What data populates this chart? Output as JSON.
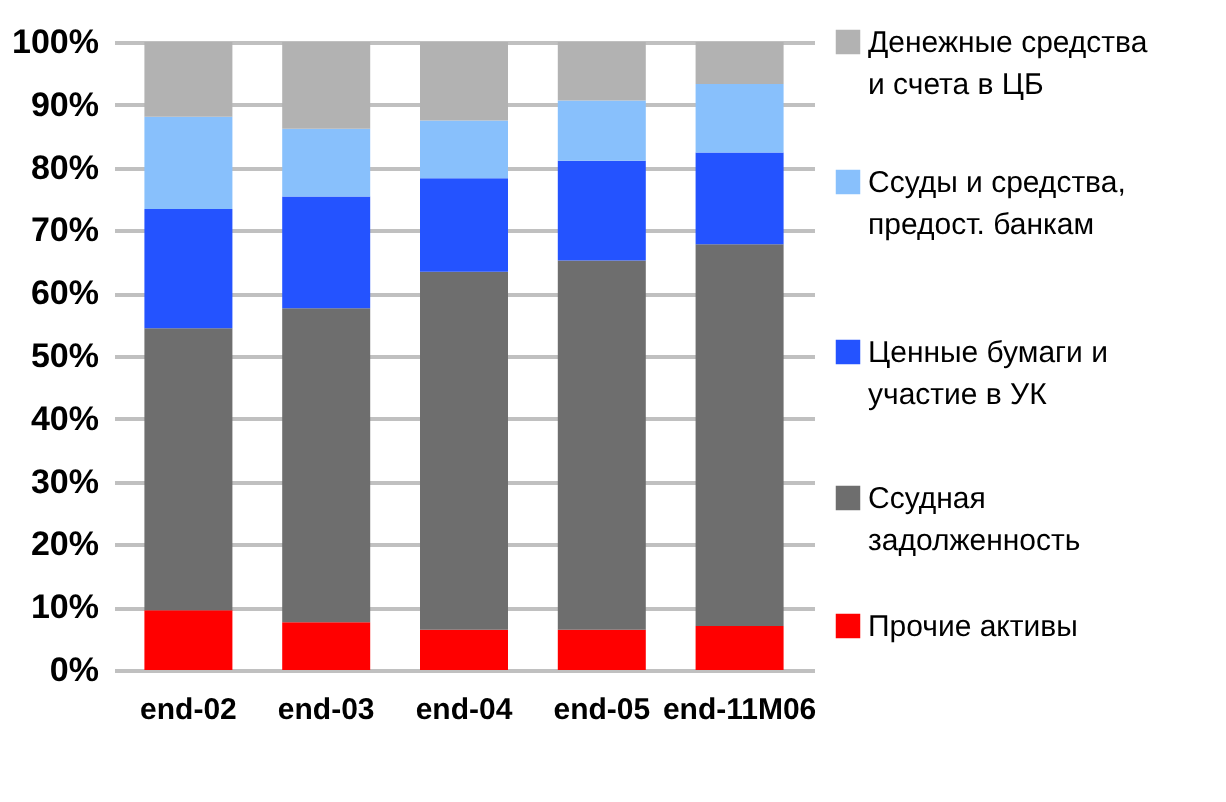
{
  "chart_data": {
    "type": "bar",
    "stacked": true,
    "categories": [
      "end-02",
      "end-03",
      "end-04",
      "end-05",
      "end-11M06"
    ],
    "series": [
      {
        "name": "Прочие активы",
        "color": "#ff0000",
        "values": [
          9.5,
          7.6,
          6.4,
          6.4,
          7.0
        ]
      },
      {
        "name": "Ссудная задолженность",
        "color": "#6e6e6e",
        "values": [
          44.9,
          50.0,
          57.0,
          58.8,
          60.8
        ]
      },
      {
        "name": "Ценные бумаги и участие в УК",
        "color": "#2453ff",
        "values": [
          19.0,
          17.8,
          14.9,
          15.9,
          14.6
        ]
      },
      {
        "name": "Ссуды и средства, предост. банкам",
        "color": "#88c0fc",
        "values": [
          14.7,
          10.8,
          9.2,
          9.6,
          10.9
        ]
      },
      {
        "name": "Денежные средства и счета в ЦБ",
        "color": "#b2b2b2",
        "values": [
          11.9,
          13.8,
          12.5,
          9.3,
          6.7
        ]
      }
    ],
    "ylim": [
      0,
      100
    ],
    "yticks": [
      {
        "value": 0,
        "label": "0%"
      },
      {
        "value": 10,
        "label": "10%"
      },
      {
        "value": 20,
        "label": "20%"
      },
      {
        "value": 30,
        "label": "30%"
      },
      {
        "value": 40,
        "label": "40%"
      },
      {
        "value": 50,
        "label": "50%"
      },
      {
        "value": 60,
        "label": "60%"
      },
      {
        "value": 70,
        "label": "70%"
      },
      {
        "value": 80,
        "label": "80%"
      },
      {
        "value": 90,
        "label": "90%"
      },
      {
        "value": 100,
        "label": "100%"
      }
    ],
    "grid": "y",
    "legend": "right"
  }
}
